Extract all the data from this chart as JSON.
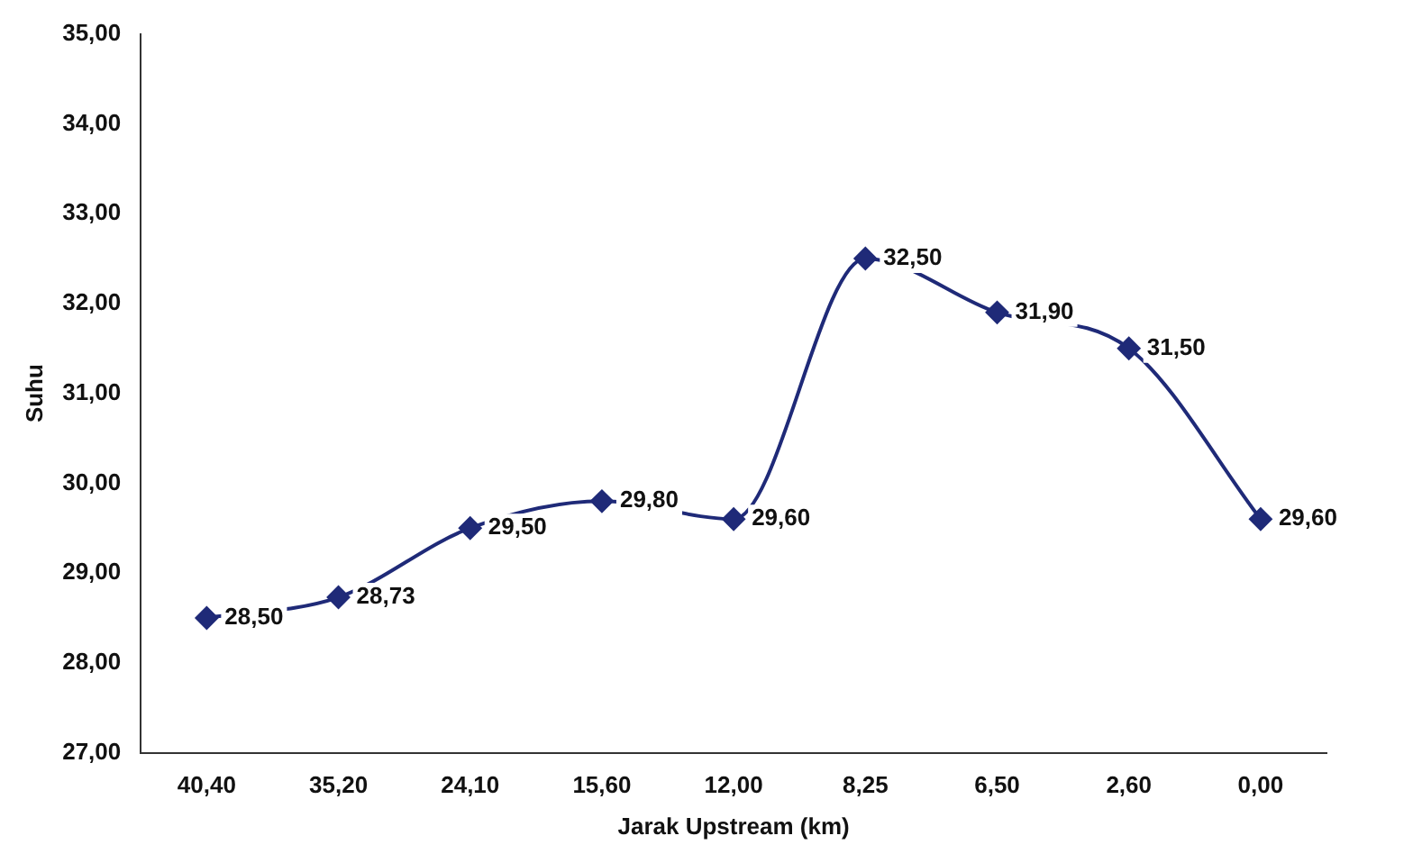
{
  "chart_data": {
    "type": "line",
    "xlabel": "Jarak Upstream (km)",
    "ylabel": "Suhu",
    "categories": [
      "40,40",
      "35,20",
      "24,10",
      "15,60",
      "12,00",
      "8,25",
      "6,50",
      "2,60",
      "0,00"
    ],
    "series": [
      {
        "color": "#1f2a78",
        "values": [
          28.5,
          28.73,
          29.5,
          29.8,
          29.6,
          32.5,
          31.9,
          31.5,
          29.6
        ],
        "value_labels": [
          "28,50",
          "28,73",
          "29,50",
          "29,80",
          "29,60",
          "32,50",
          "31,90",
          "31,50",
          "29,60"
        ]
      }
    ],
    "ylim": [
      27,
      35
    ],
    "yticks": [
      {
        "value": 27,
        "label": "27,00"
      },
      {
        "value": 28,
        "label": "28,00"
      },
      {
        "value": 29,
        "label": "29,00"
      },
      {
        "value": 30,
        "label": "30,00"
      },
      {
        "value": 31,
        "label": "31,00"
      },
      {
        "value": 32,
        "label": "32,00"
      },
      {
        "value": 33,
        "label": "33,00"
      },
      {
        "value": 34,
        "label": "34,00"
      },
      {
        "value": 35,
        "label": "35,00"
      }
    ],
    "grid": false,
    "legend": false,
    "marker": "diamond",
    "line_style": "solid"
  }
}
